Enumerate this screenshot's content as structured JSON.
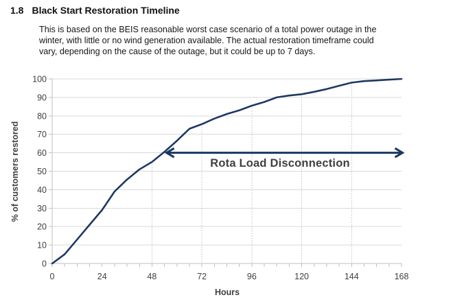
{
  "document": {
    "section_number": "1.8",
    "title": "Black Start Restoration Timeline",
    "paragraph_lines": [
      "This is based on the BEIS reasonable worst case scenario of a total power outage in the",
      "winter, with little or no wind generation available. The actual restoration timeframe could",
      "vary, depending on the cause of the outage, but it could be up to 7 days."
    ]
  },
  "chart_data": {
    "type": "line",
    "title": "Black Start Restoration Timeline",
    "xlabel": "Hours",
    "ylabel": "% of customers restored",
    "xlim": [
      0,
      168
    ],
    "ylim": [
      0,
      100
    ],
    "x_tick_labels": [
      0,
      24,
      48,
      72,
      96,
      120,
      144,
      168
    ],
    "x_minor_tick_step_hours": 6,
    "y_tick_labels": [
      0,
      10,
      20,
      30,
      40,
      50,
      60,
      70,
      80,
      90,
      100
    ],
    "grid": {
      "horizontal": "solid",
      "vertical_drop_lines_at_hours": [
        48,
        72,
        96,
        120,
        144
      ]
    },
    "legend": "none",
    "series": [
      {
        "name": "% of customers restored",
        "color": "#1f3864",
        "x_hours": [
          0,
          6,
          12,
          18,
          24,
          30,
          36,
          42,
          48,
          54,
          60,
          66,
          72,
          78,
          84,
          90,
          96,
          102,
          108,
          114,
          120,
          126,
          132,
          138,
          144,
          150,
          156,
          162,
          168
        ],
        "y_percent": [
          0,
          5,
          13,
          21,
          29,
          39,
          45.5,
          51,
          55,
          60.5,
          66.5,
          73,
          75.5,
          78.5,
          81,
          83,
          85.5,
          87.5,
          90,
          91,
          91.7,
          93,
          94.5,
          96.3,
          98,
          98.8,
          99.2,
          99.6,
          100
        ]
      }
    ],
    "annotation": {
      "label": "Rota Load Disconnection",
      "arrow_y_percent": 60,
      "arrow_from_hour": 55,
      "arrow_to_hour": 168.5,
      "arrow_color": "#17375e",
      "label_color": "#3f3f3f"
    },
    "colors": {
      "line": "#1f3864",
      "gridline": "#d9d9d9",
      "drop_line": "#bfbfbf",
      "axis": "#bfbfbf",
      "tick_label": "#404040"
    }
  }
}
